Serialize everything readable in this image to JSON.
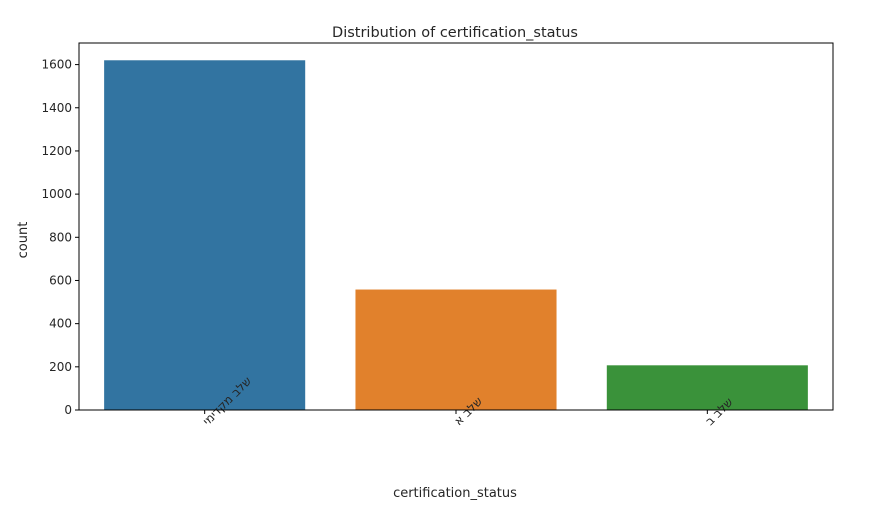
{
  "chart_data": {
    "type": "bar",
    "title": "Distribution of certification_status",
    "xlabel": "certification_status",
    "ylabel": "count",
    "categories": [
      "שלב מקדימי",
      "שלב א",
      "שלב ב"
    ],
    "values": [
      1620,
      558,
      207
    ],
    "colors": [
      "#3274a1",
      "#e1812c",
      "#3a923a"
    ],
    "ylim": [
      0,
      1700
    ],
    "yticks": [
      0,
      200,
      400,
      600,
      800,
      1000,
      1200,
      1400,
      1600
    ],
    "grid": false,
    "legend": "none",
    "xtick_rotation": 45
  }
}
